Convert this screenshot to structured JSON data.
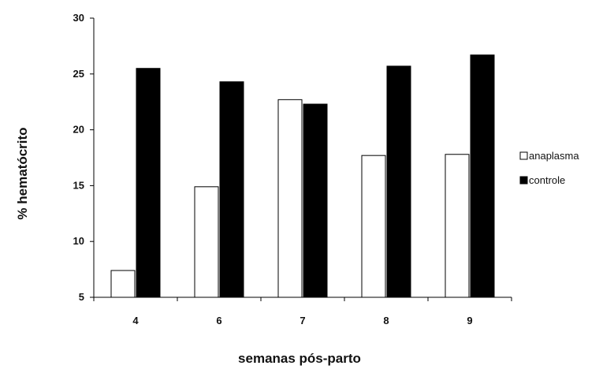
{
  "chart_data": {
    "type": "bar",
    "title": "",
    "xlabel": "semanas pós-parto",
    "ylabel": "% hematócrito",
    "categories": [
      "4",
      "6",
      "7",
      "8",
      "9"
    ],
    "series": [
      {
        "name": "anaplasma",
        "values": [
          7.4,
          14.9,
          22.7,
          17.7,
          17.8
        ],
        "color": "#ffffff",
        "stroke": "#000000"
      },
      {
        "name": "controle",
        "values": [
          25.5,
          24.3,
          22.3,
          25.7,
          26.7
        ],
        "color": "#000000",
        "stroke": "#000000"
      }
    ],
    "ylim": [
      5,
      30
    ],
    "yticks": [
      5,
      10,
      15,
      20,
      25,
      30
    ],
    "grid": false,
    "legend": "right"
  }
}
